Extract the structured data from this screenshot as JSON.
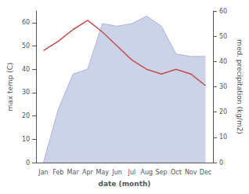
{
  "chart_data": {
    "type": "line",
    "categories": [
      "Jan",
      "Feb",
      "Mar",
      "Apr",
      "May",
      "Jun",
      "Jul",
      "Aug",
      "Sep",
      "Oct",
      "Nov",
      "Dec"
    ],
    "xlabel": "date (month)",
    "ylabel": "max temp (C)",
    "y2label": "med. precipitation (kg/m2)",
    "series": [
      {
        "type": "line",
        "color": "#c0504d",
        "values": [
          48,
          52,
          57,
          61,
          56,
          50,
          44,
          40,
          38,
          40,
          38,
          33
        ]
      },
      {
        "type": "area",
        "color": "#aab4d8",
        "axis": "y2",
        "values": [
          0,
          21,
          35,
          37,
          55,
          54,
          55,
          58,
          54,
          43,
          42,
          42
        ]
      }
    ],
    "ylim": [
      0,
      65
    ],
    "yticks": [
      0,
      10,
      20,
      30,
      40,
      50,
      60
    ],
    "y2lim": [
      0,
      60
    ],
    "y2ticks": [
      0,
      10,
      20,
      30,
      40,
      50,
      60
    ],
    "grid": false
  }
}
